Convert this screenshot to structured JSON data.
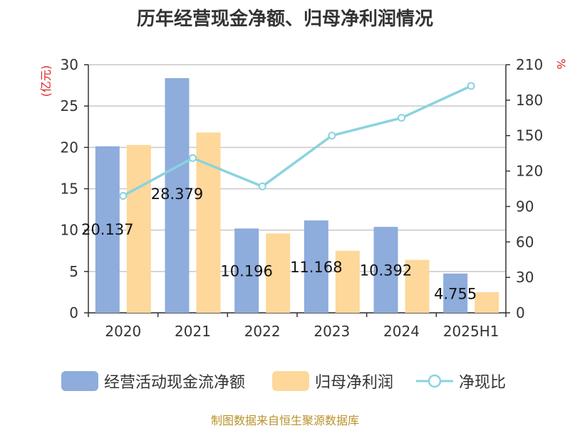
{
  "title": "历年经营现金净额、归母净利润情况",
  "source_note": "制图数据来自恒生聚源数据库",
  "colors": {
    "bar1": "#8eacdc",
    "bar2": "#fdd89a",
    "line": "#8ad3de",
    "left_unit": "#e02020",
    "right_unit": "#e02020",
    "grid": "#c8c8c8",
    "axis": "#333333"
  },
  "chart_data": {
    "type": "bar",
    "categories": [
      "2020",
      "2021",
      "2022",
      "2023",
      "2024",
      "2025H1"
    ],
    "series": [
      {
        "name": "经营活动现金流净额",
        "type": "bar",
        "axis": "left",
        "values": [
          20.137,
          28.379,
          10.196,
          11.168,
          10.392,
          4.755
        ],
        "labels": [
          "20.137",
          "28.379",
          "10.196",
          "11.168",
          "10.392",
          "4.755"
        ]
      },
      {
        "name": "归母净利润",
        "type": "bar",
        "axis": "left",
        "values": [
          20.3,
          21.8,
          9.6,
          7.5,
          6.4,
          2.5
        ]
      },
      {
        "name": "净现比",
        "type": "line",
        "axis": "right",
        "values": [
          99,
          131,
          107,
          150,
          165,
          192
        ]
      }
    ],
    "left_axis": {
      "unit": "(亿元)",
      "min": 0,
      "max": 30,
      "ticks": [
        0,
        5,
        10,
        15,
        20,
        25,
        30
      ]
    },
    "right_axis": {
      "unit": "%",
      "min": 0,
      "max": 210,
      "ticks": [
        0,
        30,
        60,
        90,
        120,
        150,
        180,
        210
      ]
    },
    "grid": true,
    "legend_position": "bottom"
  }
}
